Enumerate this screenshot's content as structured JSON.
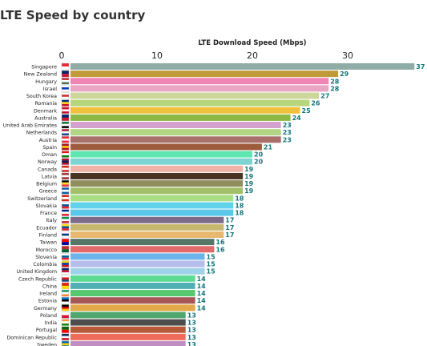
{
  "page_title": "LTE Speed by country",
  "chart_data": {
    "type": "bar",
    "orientation": "horizontal",
    "title": "LTE Speed by country",
    "axis_title": "LTE Download Speed (Mbps)",
    "axis_position": "top",
    "xlim": [
      0,
      37
    ],
    "ticks": [
      0,
      10,
      20,
      30
    ],
    "grid": false,
    "legend": "none",
    "categories": [
      "Singapore",
      "New Zealand",
      "Hungary",
      "Israel",
      "South Korea",
      "Romania",
      "Denmark",
      "Australia",
      "United Arab Emirates",
      "Netherlands",
      "Austria",
      "Spain",
      "Oman",
      "Norway",
      "Canada",
      "Latvia",
      "Belgium",
      "Greece",
      "Switzerland",
      "Slovakia",
      "France",
      "Italy",
      "Ecuador",
      "Finland",
      "Taiwan",
      "Morocco",
      "Slovenia",
      "Colombia",
      "United Kingdom",
      "Czech Republic",
      "China",
      "Ireland",
      "Estonia",
      "Germany",
      "Poland",
      "India",
      "Portugal",
      "Dominican Republic",
      "Sweden"
    ],
    "values": [
      37,
      29,
      28,
      28,
      27,
      26,
      25,
      24,
      23,
      23,
      23,
      21,
      20,
      20,
      19,
      19,
      19,
      19,
      18,
      18,
      18,
      17,
      17,
      17,
      16,
      16,
      15,
      15,
      15,
      14,
      14,
      14,
      14,
      14,
      13,
      13,
      13,
      13,
      13
    ],
    "bar_colors": [
      "#8fada6",
      "#c09a3a",
      "#ee85b5",
      "#e8a6c4",
      "#cdd79a",
      "#b7d57a",
      "#f0c23b",
      "#8db844",
      "#d4a2cc",
      "#b2d686",
      "#a86f6b",
      "#9d5b3c",
      "#5de6b0",
      "#7ed4d2",
      "#f0b1a6",
      "#4a3222",
      "#8f8e5c",
      "#a2c06a",
      "#aade84",
      "#62d2ea",
      "#5ac8ea",
      "#7d6b8a",
      "#c8b86e",
      "#e8b870",
      "#567768",
      "#e36a6a",
      "#6bb3e8",
      "#b7bdea",
      "#9fd2ea",
      "#5ddb94",
      "#50b0b4",
      "#58c870",
      "#a85656",
      "#e3a848",
      "#4fa76f",
      "#4d4d4d",
      "#b85a3a",
      "#f06c5a",
      "#c08ec2"
    ],
    "flag_colors": [
      [
        "#ed2939",
        "#ffffff"
      ],
      [
        "#012169",
        "#cc142b"
      ],
      [
        "#ce2939",
        "#ffffff",
        "#477050"
      ],
      [
        "#ffffff",
        "#0038b8",
        "#ffffff"
      ],
      [
        "#ffffff",
        "#cd2e3a",
        "#ffffff"
      ],
      [
        "#002b7f",
        "#fcd116",
        "#ce1126"
      ],
      [
        "#c8102e",
        "#ffffff",
        "#c8102e"
      ],
      [
        "#012169",
        "#cc142b"
      ],
      [
        "#00732f",
        "#ffffff",
        "#000000"
      ],
      [
        "#ae1c28",
        "#ffffff",
        "#21468b"
      ],
      [
        "#ed2939",
        "#ffffff",
        "#ed2939"
      ],
      [
        "#aa151b",
        "#f1bf00",
        "#aa151b"
      ],
      [
        "#db161b",
        "#ffffff",
        "#008000"
      ],
      [
        "#ba0c2f",
        "#00205b",
        "#ba0c2f"
      ],
      [
        "#d52b1e",
        "#ffffff",
        "#d52b1e"
      ],
      [
        "#9e3039",
        "#ffffff",
        "#9e3039"
      ],
      [
        "#000000",
        "#fdda24",
        "#ef3340"
      ],
      [
        "#0d5eaf",
        "#ffffff",
        "#0d5eaf"
      ],
      [
        "#d52b1e",
        "#ffffff",
        "#d52b1e"
      ],
      [
        "#ffffff",
        "#0b4ea2",
        "#ee1c25"
      ],
      [
        "#002395",
        "#ffffff",
        "#ed2939"
      ],
      [
        "#009246",
        "#ffffff",
        "#ce2b37"
      ],
      [
        "#ffdd00",
        "#034ea2",
        "#ed1c24"
      ],
      [
        "#ffffff",
        "#003580",
        "#ffffff"
      ],
      [
        "#fe0000",
        "#000095"
      ],
      [
        "#c1272d",
        "#006233"
      ],
      [
        "#ffffff",
        "#005da4",
        "#ed1c24"
      ],
      [
        "#fcd116",
        "#003893",
        "#ce1126"
      ],
      [
        "#012169",
        "#c8102e",
        "#ffffff"
      ],
      [
        "#ffffff",
        "#d7141a",
        "#11457e"
      ],
      [
        "#de2910",
        "#ffde00"
      ],
      [
        "#169b62",
        "#ffffff",
        "#ff883e"
      ],
      [
        "#0072ce",
        "#000000",
        "#ffffff"
      ],
      [
        "#000000",
        "#dd0000",
        "#ffce00"
      ],
      [
        "#ffffff",
        "#dc143c"
      ],
      [
        "#ff9933",
        "#ffffff",
        "#138808"
      ],
      [
        "#006600",
        "#ff0000"
      ],
      [
        "#002d62",
        "#ffffff",
        "#ce1126"
      ],
      [
        "#006aa7",
        "#fecc00",
        "#006aa7"
      ]
    ],
    "value_label_color": "#11777a"
  }
}
